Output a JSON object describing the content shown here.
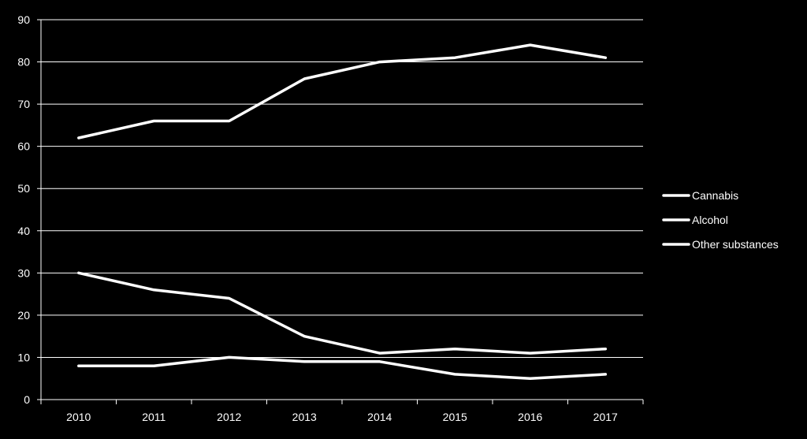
{
  "chart_data": {
    "type": "line",
    "title": "",
    "xlabel": "",
    "ylabel": "",
    "categories": [
      "2010",
      "2011",
      "2012",
      "2013",
      "2014",
      "2015",
      "2016",
      "2017"
    ],
    "ylim": [
      0,
      90
    ],
    "yticks": [
      0,
      10,
      20,
      30,
      40,
      50,
      60,
      70,
      80,
      90
    ],
    "grid": true,
    "legend_position": "right",
    "colors": {
      "background": "#000000",
      "line": "#ffffff",
      "grid": "#ffffff",
      "text": "#ffffff"
    },
    "series": [
      {
        "name": "Cannabis",
        "values": [
          62,
          66,
          66,
          76,
          80,
          81,
          84,
          81
        ]
      },
      {
        "name": "Alcohol",
        "values": [
          30,
          26,
          24,
          15,
          11,
          12,
          11,
          12
        ]
      },
      {
        "name": "Other substances",
        "values": [
          8,
          8,
          10,
          9,
          9,
          6,
          5,
          6
        ]
      }
    ]
  }
}
